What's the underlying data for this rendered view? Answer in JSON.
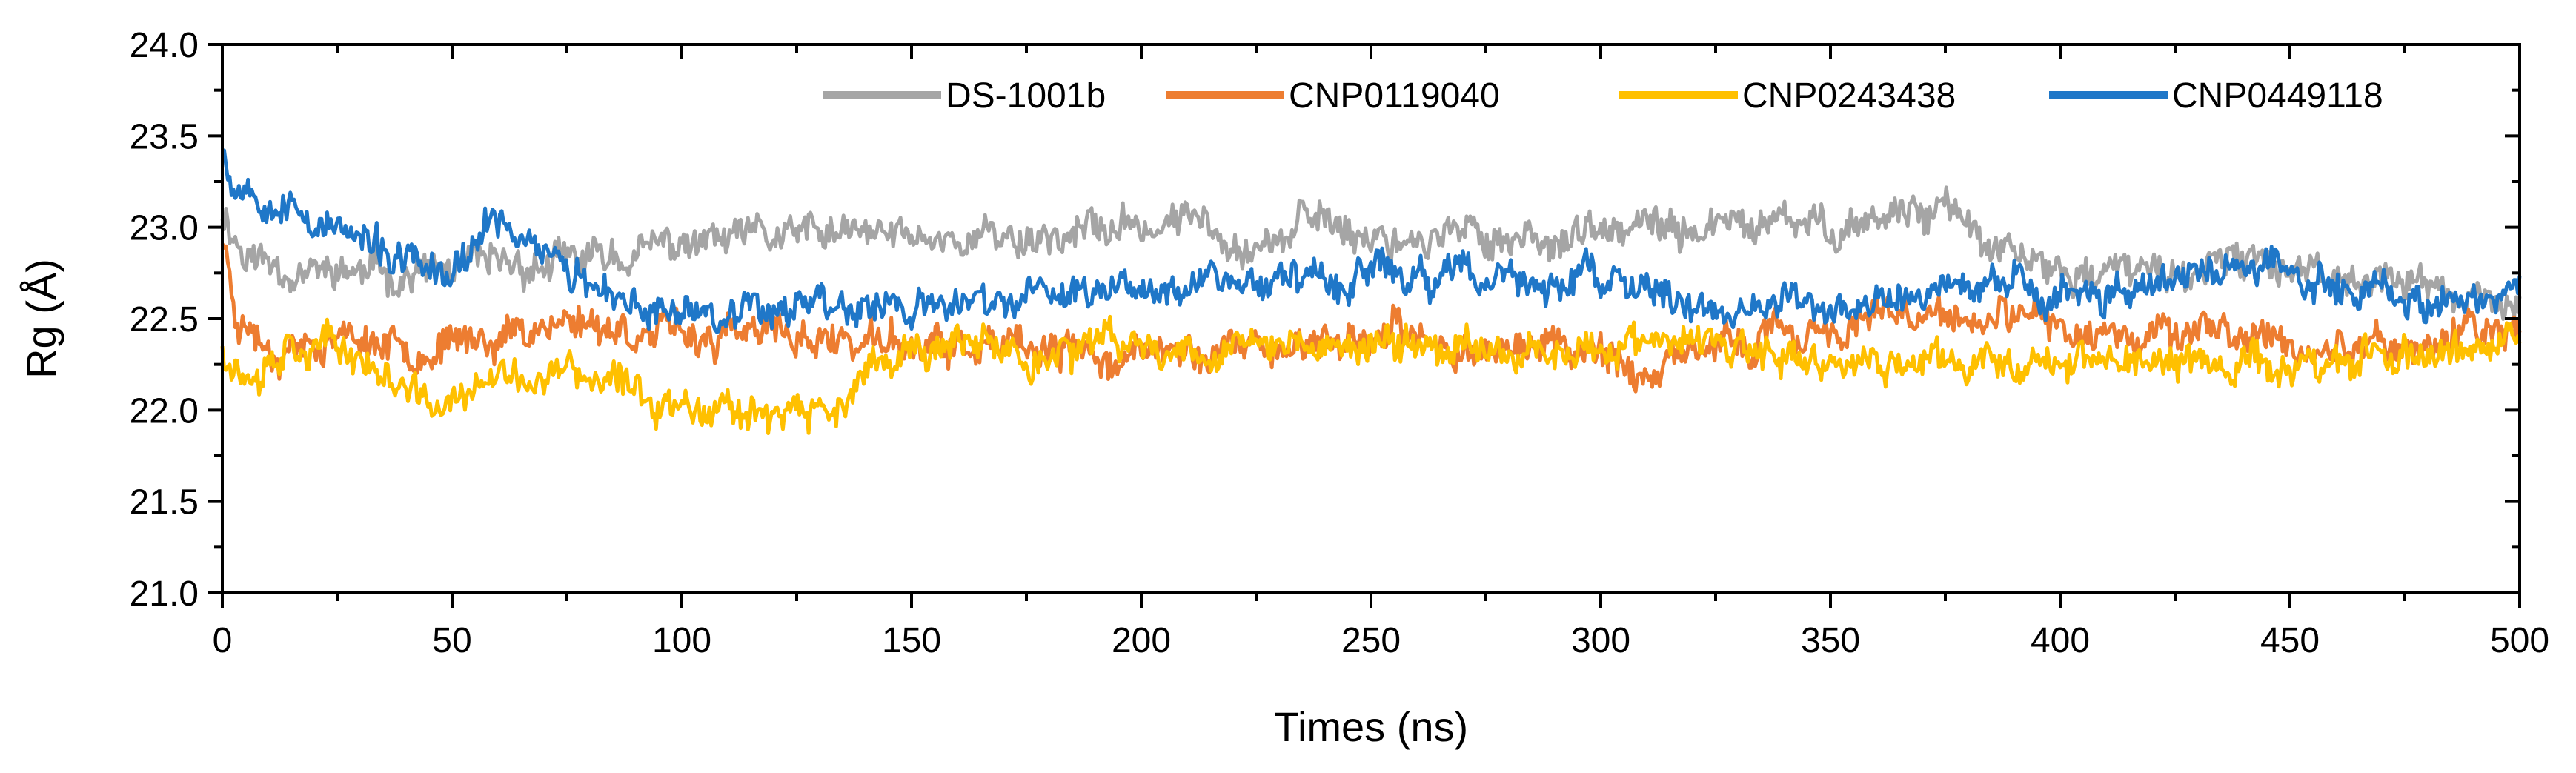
{
  "chart_data": {
    "type": "line",
    "title": "",
    "xlabel": "Times (ns)",
    "ylabel": "Rg (Å)",
    "xlim": [
      0,
      500
    ],
    "ylim": [
      21.0,
      24.0
    ],
    "xticks": [
      0,
      50,
      100,
      150,
      200,
      250,
      300,
      350,
      400,
      450,
      500
    ],
    "yticks": [
      21.0,
      21.5,
      22.0,
      22.5,
      23.0,
      23.5,
      24.0
    ],
    "xtick_labels": [
      "0",
      "50",
      "100",
      "150",
      "200",
      "250",
      "300",
      "350",
      "400",
      "450",
      "500"
    ],
    "ytick_labels": [
      "21.0",
      "21.5",
      "22.0",
      "22.5",
      "23.0",
      "23.5",
      "24.0"
    ],
    "grid": false,
    "legend_position": "top-right",
    "series": [
      {
        "name": "DS-1001b",
        "color": "#A5A5A5",
        "noise": 0.09,
        "seed": 11,
        "x": [
          0,
          5,
          20,
          50,
          75,
          100,
          125,
          150,
          175,
          200,
          215,
          225,
          240,
          250,
          275,
          300,
          325,
          350,
          375,
          385,
          400,
          425,
          450,
          475,
          500
        ],
        "y": [
          23.1,
          22.85,
          22.75,
          22.75,
          22.8,
          22.9,
          22.95,
          22.95,
          22.95,
          23.0,
          23.05,
          22.9,
          23.05,
          22.95,
          22.95,
          22.95,
          23.0,
          23.0,
          23.15,
          22.85,
          22.75,
          22.75,
          22.8,
          22.7,
          22.55
        ]
      },
      {
        "name": "CNP0119040",
        "color": "#ED7D31",
        "noise": 0.09,
        "seed": 23,
        "x": [
          0,
          3,
          10,
          25,
          50,
          75,
          100,
          125,
          150,
          175,
          200,
          225,
          250,
          275,
          300,
          312,
          325,
          350,
          375,
          400,
          425,
          450,
          475,
          500
        ],
        "y": [
          22.95,
          22.55,
          22.35,
          22.4,
          22.35,
          22.5,
          22.4,
          22.4,
          22.35,
          22.3,
          22.3,
          22.35,
          22.4,
          22.35,
          22.35,
          22.15,
          22.35,
          22.45,
          22.5,
          22.45,
          22.45,
          22.35,
          22.35,
          22.45
        ]
      },
      {
        "name": "CNP0243438",
        "color": "#FFC000",
        "noise": 0.09,
        "seed": 37,
        "x": [
          0,
          5,
          15,
          30,
          45,
          60,
          75,
          95,
          110,
          130,
          150,
          175,
          200,
          225,
          250,
          275,
          300,
          325,
          340,
          360,
          375,
          400,
          425,
          450,
          475,
          500
        ],
        "y": [
          22.35,
          22.2,
          22.4,
          22.3,
          22.0,
          22.15,
          22.2,
          22.05,
          22.05,
          21.95,
          22.35,
          22.3,
          22.35,
          22.35,
          22.35,
          22.35,
          22.35,
          22.35,
          22.25,
          22.25,
          22.25,
          22.3,
          22.25,
          22.25,
          22.3,
          22.35
        ]
      },
      {
        "name": "CNP0449118",
        "color": "#1F77C8",
        "noise": 0.09,
        "seed": 53,
        "x": [
          0,
          2,
          10,
          20,
          35,
          50,
          60,
          70,
          85,
          100,
          125,
          150,
          175,
          200,
          215,
          225,
          250,
          275,
          300,
          325,
          350,
          375,
          400,
          425,
          440,
          450,
          475,
          490,
          500
        ],
        "y": [
          23.5,
          23.25,
          23.2,
          23.05,
          22.85,
          22.7,
          23.05,
          22.9,
          22.55,
          22.55,
          22.6,
          22.55,
          22.6,
          22.7,
          22.75,
          22.7,
          22.75,
          22.7,
          22.7,
          22.55,
          22.55,
          22.65,
          22.65,
          22.7,
          22.8,
          22.75,
          22.65,
          22.55,
          22.75
        ]
      }
    ]
  }
}
